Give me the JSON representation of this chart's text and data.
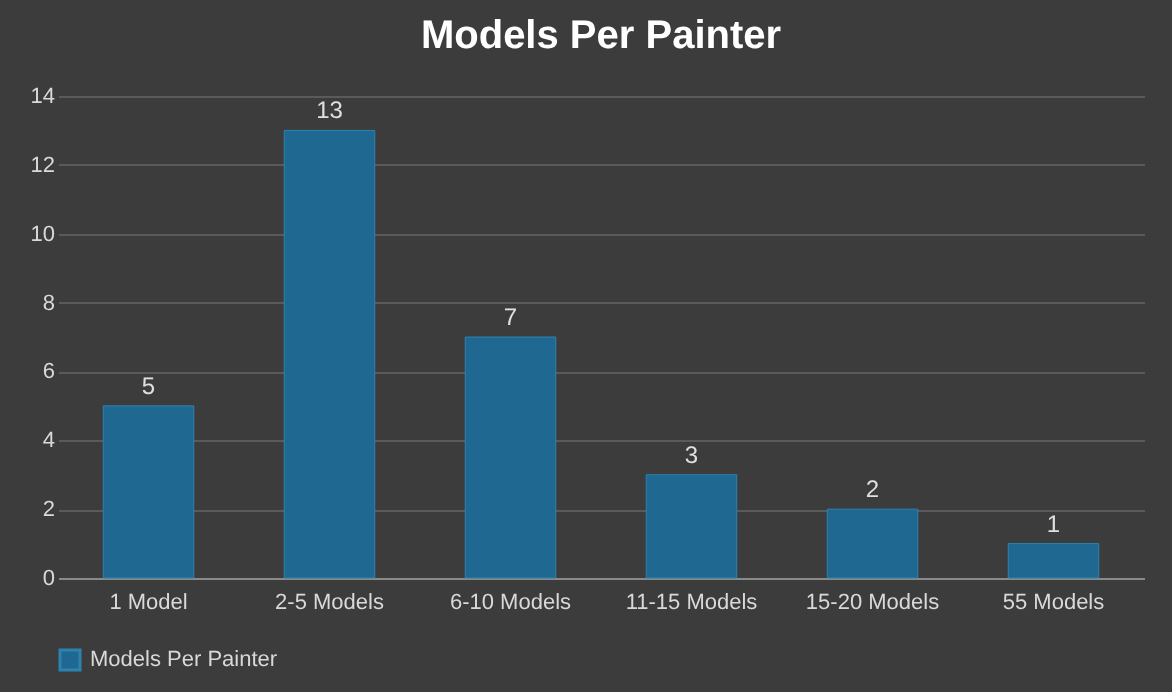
{
  "chart_data": {
    "type": "bar",
    "title": "Models Per Painter",
    "categories": [
      "1 Model",
      "2-5 Models",
      "6-10 Models",
      "11-15 Models",
      "15-20 Models",
      "55 Models"
    ],
    "series": [
      {
        "name": "Models Per Painter",
        "color": "#1f6891",
        "values": [
          5,
          13,
          7,
          3,
          2,
          1
        ]
      }
    ],
    "ylim": [
      0,
      14
    ],
    "yticks": [
      0,
      2,
      4,
      6,
      8,
      10,
      12,
      14
    ],
    "grid": "y",
    "legend": "bottom",
    "data_labels": true
  }
}
